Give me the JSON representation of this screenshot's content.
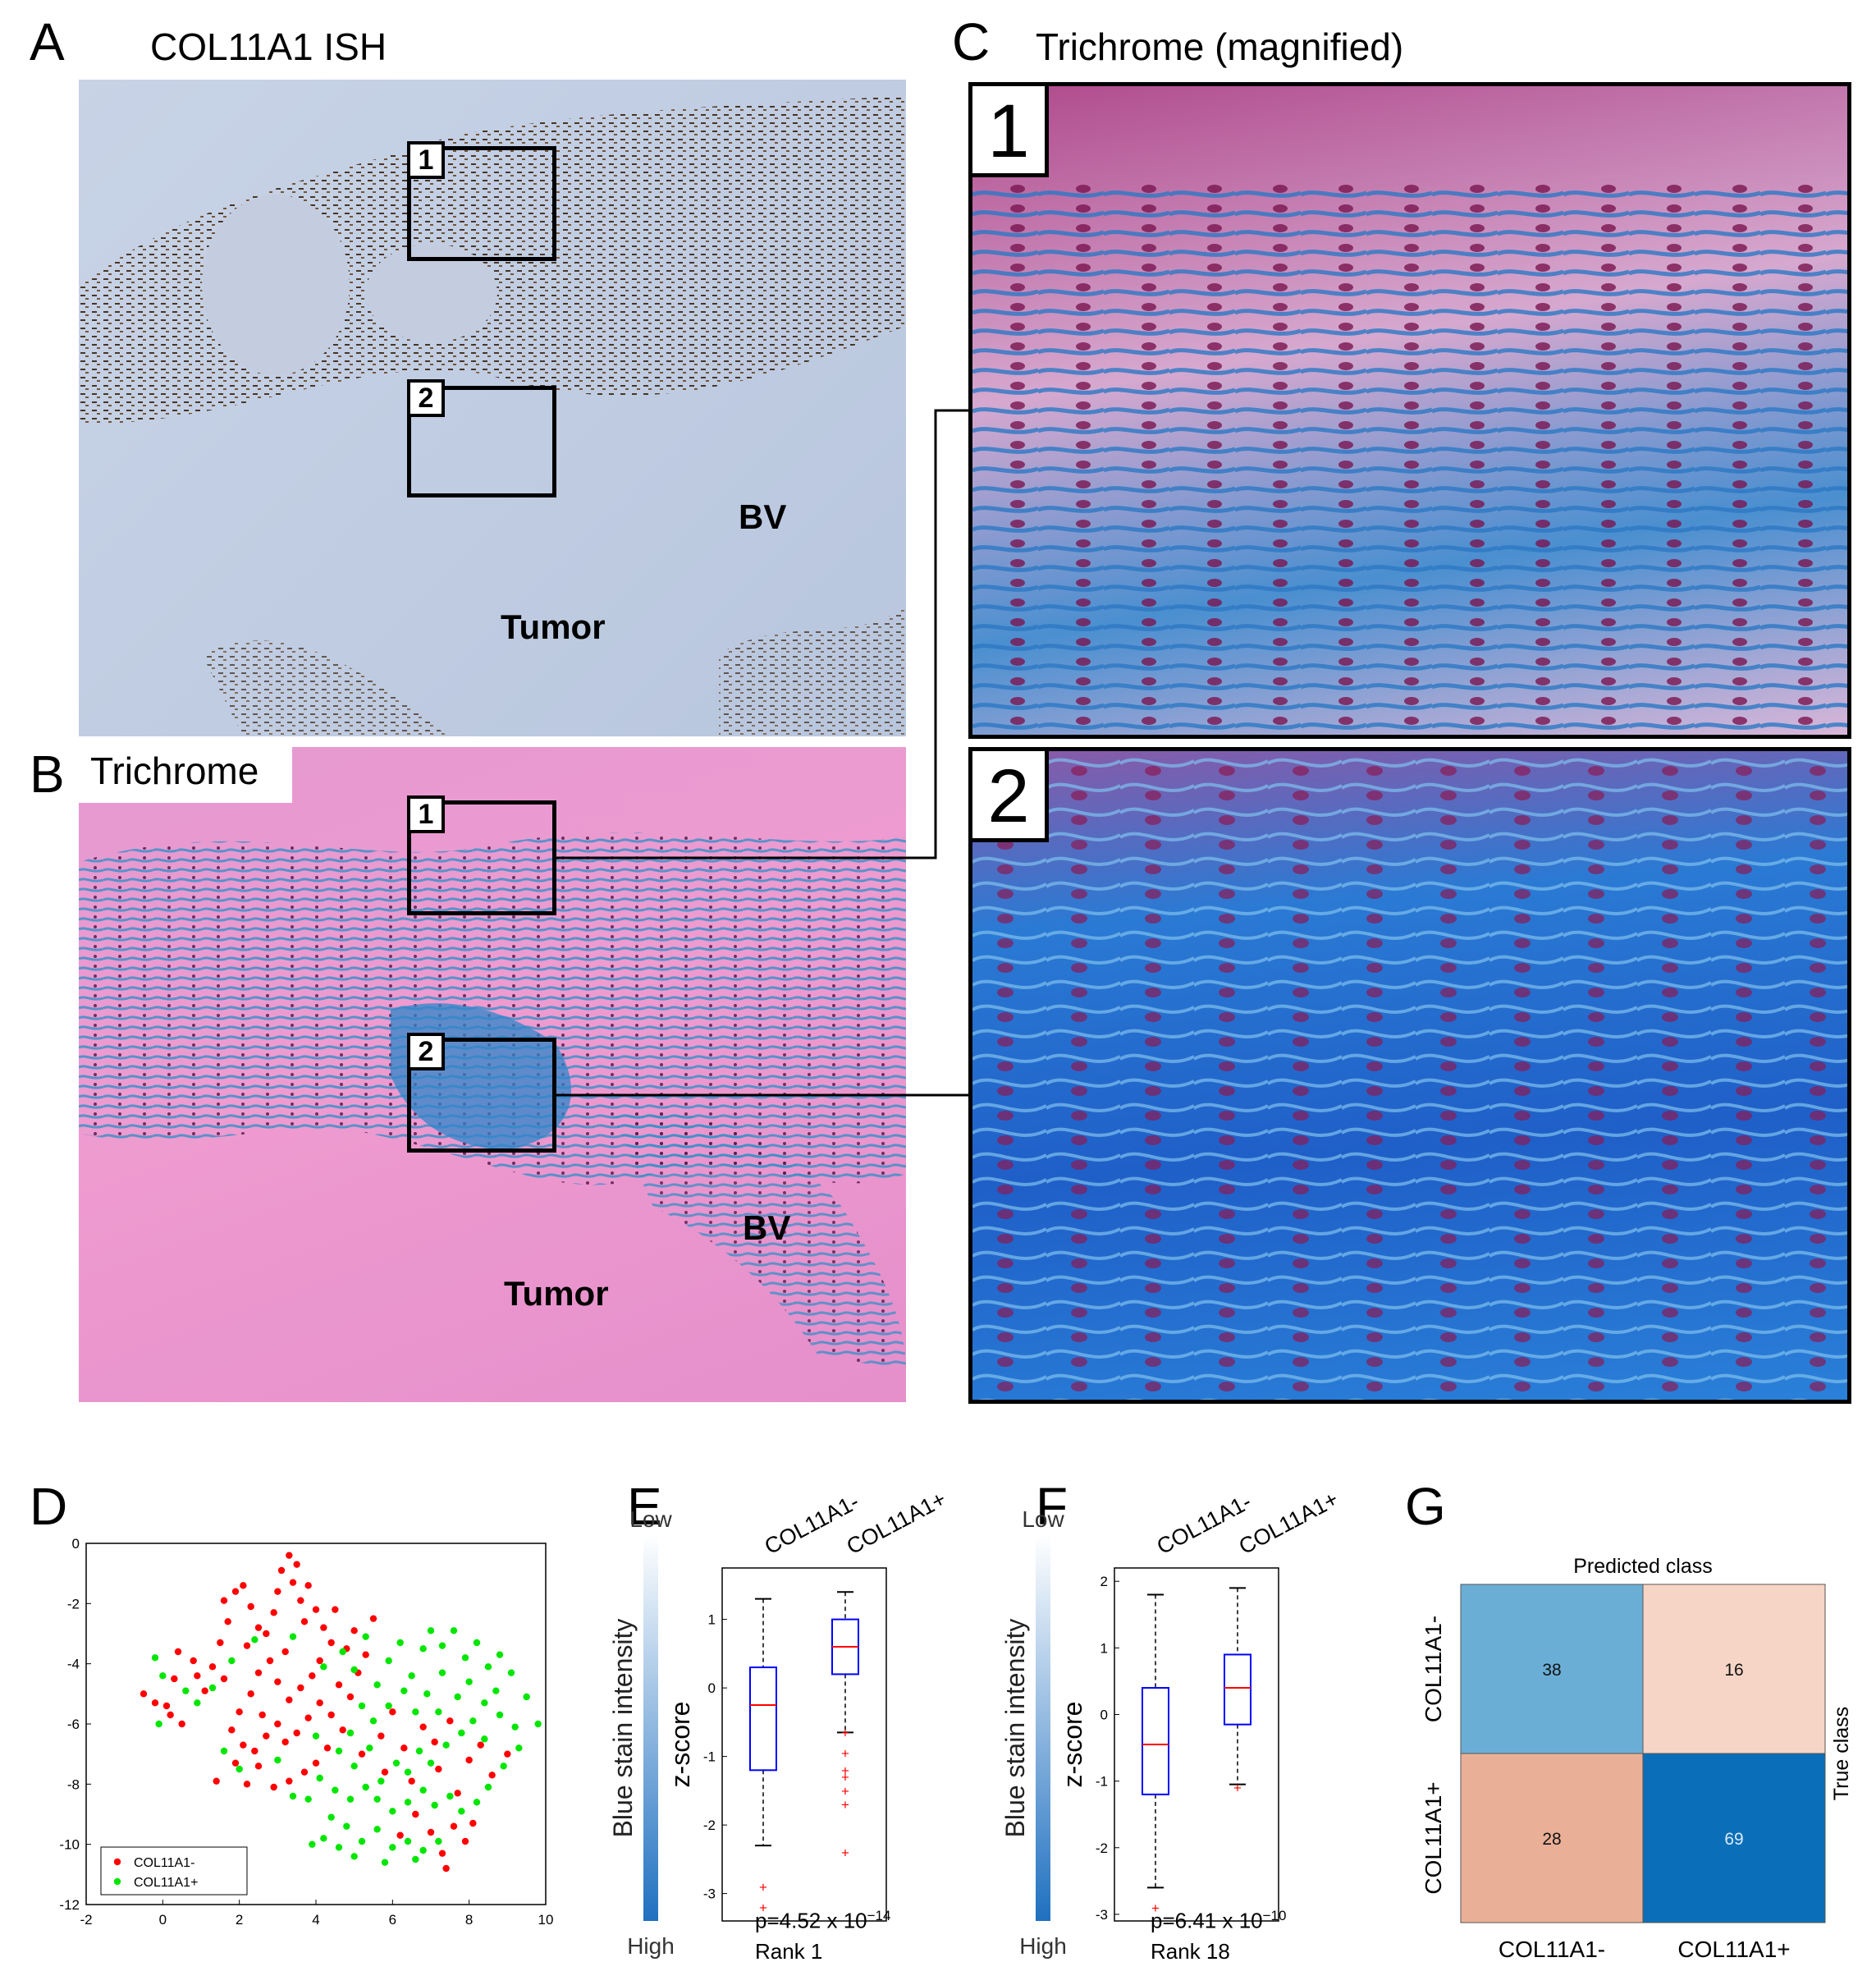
{
  "panels": {
    "A": {
      "letter": "A",
      "title": "COL11A1 ISH",
      "box1": "1",
      "box2": "2",
      "bv": "BV",
      "tumor": "Tumor"
    },
    "B": {
      "letter": "B",
      "title": "Trichrome",
      "box1": "1",
      "box2": "2",
      "bv": "BV",
      "tumor": "Tumor"
    },
    "C": {
      "letter": "C",
      "title": "Trichrome (magnified)",
      "inset1": "1",
      "inset2": "2"
    },
    "D": {
      "letter": "D"
    },
    "E": {
      "letter": "E",
      "p_prefix": "p=4.52 x 10",
      "p_exp": "−14",
      "rank": "Rank 1"
    },
    "F": {
      "letter": "F",
      "p_prefix": "p=6.41 x 10",
      "p_exp": "−10",
      "rank": "Rank 18"
    },
    "G": {
      "letter": "G"
    }
  },
  "colors": {
    "neg": "#ff0000",
    "pos": "#00e600",
    "box": "#0000ff",
    "median": "#ff0000",
    "cm_38": "#6aaed6",
    "cm_16": "#f6d5c6",
    "cm_28": "#eab097",
    "cm_69": "#0a6fb8"
  },
  "chart_data": [
    {
      "type": "scatter",
      "panel": "D",
      "xlim": [
        -2,
        10
      ],
      "ylim": [
        -12,
        0
      ],
      "xticks": [
        -2,
        0,
        2,
        4,
        6,
        8,
        10
      ],
      "yticks": [
        0,
        -2,
        -4,
        -6,
        -8,
        -10,
        -12
      ],
      "legend": [
        "COL11A1-",
        "COL11A1+"
      ],
      "legend_position": "bottom-left",
      "series": [
        {
          "name": "COL11A1-",
          "color": "#ff0000",
          "points": [
            [
              -0.5,
              -5.0
            ],
            [
              -0.2,
              -5.3
            ],
            [
              0.1,
              -5.4
            ],
            [
              0.3,
              -4.5
            ],
            [
              0.5,
              -6.0
            ],
            [
              0.2,
              -5.7
            ],
            [
              0.4,
              -3.6
            ],
            [
              0.8,
              -3.9
            ],
            [
              1.1,
              -4.9
            ],
            [
              1.3,
              -4.1
            ],
            [
              1.5,
              -3.3
            ],
            [
              1.7,
              -2.6
            ],
            [
              1.6,
              -1.9
            ],
            [
              1.9,
              -1.6
            ],
            [
              2.1,
              -1.4
            ],
            [
              2.3,
              -2.1
            ],
            [
              2.5,
              -2.8
            ],
            [
              2.2,
              -3.4
            ],
            [
              2.7,
              -3.0
            ],
            [
              2.9,
              -2.3
            ],
            [
              3.0,
              -1.6
            ],
            [
              3.1,
              -0.9
            ],
            [
              3.3,
              -0.4
            ],
            [
              3.5,
              -0.7
            ],
            [
              3.4,
              -1.3
            ],
            [
              3.6,
              -1.9
            ],
            [
              3.8,
              -1.4
            ],
            [
              3.7,
              -2.6
            ],
            [
              4.0,
              -2.2
            ],
            [
              4.2,
              -2.8
            ],
            [
              4.4,
              -3.3
            ],
            [
              4.1,
              -3.9
            ],
            [
              3.9,
              -4.4
            ],
            [
              3.6,
              -4.8
            ],
            [
              3.3,
              -5.2
            ],
            [
              3.0,
              -4.6
            ],
            [
              2.8,
              -3.9
            ],
            [
              2.5,
              -4.3
            ],
            [
              2.3,
              -5.0
            ],
            [
              2.0,
              -5.6
            ],
            [
              1.8,
              -6.2
            ],
            [
              2.1,
              -6.7
            ],
            [
              2.4,
              -6.9
            ],
            [
              2.7,
              -6.4
            ],
            [
              3.0,
              -6.0
            ],
            [
              3.2,
              -6.6
            ],
            [
              3.5,
              -6.3
            ],
            [
              3.8,
              -5.8
            ],
            [
              4.1,
              -5.3
            ],
            [
              4.4,
              -5.7
            ],
            [
              4.7,
              -6.2
            ],
            [
              4.3,
              -6.8
            ],
            [
              4.0,
              -7.3
            ],
            [
              3.7,
              -7.6
            ],
            [
              3.3,
              -7.9
            ],
            [
              2.9,
              -8.1
            ],
            [
              2.5,
              -7.4
            ],
            [
              2.2,
              -8.0
            ],
            [
              1.9,
              -7.3
            ],
            [
              4.6,
              -4.7
            ],
            [
              4.9,
              -5.1
            ],
            [
              5.1,
              -4.3
            ],
            [
              5.3,
              -3.7
            ],
            [
              5.0,
              -2.9
            ],
            [
              5.5,
              -2.5
            ],
            [
              4.8,
              -3.5
            ],
            [
              5.7,
              -6.4
            ],
            [
              6.0,
              -5.6
            ],
            [
              6.3,
              -6.8
            ],
            [
              5.8,
              -7.6
            ],
            [
              6.5,
              -7.9
            ],
            [
              6.8,
              -6.1
            ],
            [
              7.1,
              -6.6
            ],
            [
              7.5,
              -5.9
            ],
            [
              7.2,
              -7.5
            ],
            [
              7.7,
              -8.3
            ],
            [
              8.0,
              -7.2
            ],
            [
              8.3,
              -6.7
            ],
            [
              8.6,
              -7.7
            ],
            [
              9.0,
              -7.0
            ],
            [
              7.6,
              -9.4
            ],
            [
              7.9,
              -9.9
            ],
            [
              7.3,
              -10.3
            ],
            [
              7.0,
              -9.6
            ],
            [
              6.6,
              -9.0
            ],
            [
              7.4,
              -10.8
            ],
            [
              8.1,
              -9.3
            ],
            [
              1.4,
              -7.9
            ],
            [
              2.6,
              -5.7
            ],
            [
              0.9,
              -4.4
            ],
            [
              1.6,
              -4.5
            ],
            [
              4.5,
              -2.2
            ],
            [
              3.2,
              -3.6
            ],
            [
              5.2,
              -7.0
            ],
            [
              6.2,
              -9.7
            ]
          ]
        },
        {
          "name": "COL11A1+",
          "color": "#00e600",
          "points": [
            [
              -0.2,
              -3.8
            ],
            [
              0.0,
              -4.4
            ],
            [
              -0.1,
              -6.0
            ],
            [
              0.6,
              -4.9
            ],
            [
              0.9,
              -5.3
            ],
            [
              1.3,
              -4.8
            ],
            [
              1.8,
              -3.9
            ],
            [
              2.4,
              -3.2
            ],
            [
              3.4,
              -3.1
            ],
            [
              4.2,
              -4.1
            ],
            [
              4.7,
              -3.6
            ],
            [
              5.0,
              -4.2
            ],
            [
              5.3,
              -3.1
            ],
            [
              5.6,
              -4.7
            ],
            [
              5.9,
              -3.9
            ],
            [
              6.2,
              -3.3
            ],
            [
              6.5,
              -4.4
            ],
            [
              6.8,
              -3.5
            ],
            [
              7.0,
              -2.9
            ],
            [
              7.3,
              -3.4
            ],
            [
              7.6,
              -2.9
            ],
            [
              7.9,
              -3.8
            ],
            [
              8.2,
              -3.3
            ],
            [
              8.5,
              -4.1
            ],
            [
              8.8,
              -3.7
            ],
            [
              9.1,
              -4.3
            ],
            [
              8.7,
              -4.9
            ],
            [
              8.4,
              -5.3
            ],
            [
              8.0,
              -4.6
            ],
            [
              7.7,
              -5.1
            ],
            [
              7.3,
              -4.3
            ],
            [
              6.9,
              -5.0
            ],
            [
              6.6,
              -5.6
            ],
            [
              6.3,
              -4.9
            ],
            [
              5.9,
              -5.4
            ],
            [
              5.5,
              -5.9
            ],
            [
              5.2,
              -5.4
            ],
            [
              4.9,
              -6.3
            ],
            [
              4.6,
              -6.9
            ],
            [
              5.0,
              -7.4
            ],
            [
              5.4,
              -6.8
            ],
            [
              5.7,
              -7.9
            ],
            [
              6.1,
              -7.3
            ],
            [
              6.4,
              -7.6
            ],
            [
              6.7,
              -6.9
            ],
            [
              7.0,
              -7.3
            ],
            [
              7.4,
              -6.7
            ],
            [
              7.8,
              -6.3
            ],
            [
              8.1,
              -5.9
            ],
            [
              8.4,
              -6.5
            ],
            [
              8.8,
              -5.7
            ],
            [
              9.2,
              -6.1
            ],
            [
              9.5,
              -5.1
            ],
            [
              9.3,
              -6.8
            ],
            [
              8.9,
              -7.4
            ],
            [
              8.5,
              -8.1
            ],
            [
              8.2,
              -8.6
            ],
            [
              7.8,
              -8.9
            ],
            [
              7.5,
              -8.4
            ],
            [
              7.1,
              -8.7
            ],
            [
              6.8,
              -8.2
            ],
            [
              6.4,
              -8.6
            ],
            [
              6.0,
              -8.9
            ],
            [
              5.6,
              -8.5
            ],
            [
              5.3,
              -8.1
            ],
            [
              4.9,
              -8.5
            ],
            [
              4.5,
              -8.2
            ],
            [
              4.1,
              -7.8
            ],
            [
              3.8,
              -8.5
            ],
            [
              4.4,
              -9.1
            ],
            [
              4.8,
              -9.4
            ],
            [
              5.2,
              -9.9
            ],
            [
              5.6,
              -9.5
            ],
            [
              6.0,
              -10.1
            ],
            [
              6.4,
              -9.9
            ],
            [
              6.8,
              -10.2
            ],
            [
              7.2,
              -9.9
            ],
            [
              4.6,
              -10.1
            ],
            [
              4.2,
              -9.8
            ],
            [
              3.9,
              -10.0
            ],
            [
              5.0,
              -10.4
            ],
            [
              5.8,
              -10.6
            ],
            [
              6.6,
              -10.5
            ],
            [
              1.6,
              -6.9
            ],
            [
              2.0,
              -7.5
            ],
            [
              3.0,
              -7.2
            ],
            [
              3.4,
              -8.4
            ],
            [
              4.0,
              -6.4
            ],
            [
              7.2,
              -5.6
            ],
            [
              9.8,
              -6.0
            ]
          ]
        }
      ]
    },
    {
      "type": "box",
      "panel": "E",
      "categories": [
        "COL11A1-",
        "COL11A1+"
      ],
      "ylabel": "z-score",
      "ylim": [
        -3.4,
        1.75
      ],
      "yticks": [
        1,
        0,
        -1,
        -2,
        -3
      ],
      "colorbar": {
        "label": "Blue stain intensity",
        "low": "Low",
        "high": "High"
      },
      "boxes": [
        {
          "whisker_high": 1.3,
          "q3": 0.3,
          "median": -0.25,
          "q1": -1.2,
          "whisker_low": -2.3,
          "outliers": [
            -2.9,
            -3.2
          ]
        },
        {
          "whisker_high": 1.4,
          "q3": 1.0,
          "median": 0.6,
          "q1": 0.2,
          "whisker_low": -0.65,
          "outliers": [
            -0.65,
            -0.95,
            -1.2,
            -1.3,
            -1.5,
            -1.7,
            -2.4
          ]
        }
      ]
    },
    {
      "type": "box",
      "panel": "F",
      "categories": [
        "COL11A1-",
        "COL11A1+"
      ],
      "ylabel": "z-score",
      "ylim": [
        -3.1,
        2.2
      ],
      "yticks": [
        2,
        1,
        0,
        -1,
        -2,
        -3
      ],
      "colorbar": {
        "label": "Blue stain intensity",
        "low": "Low",
        "high": "High"
      },
      "boxes": [
        {
          "whisker_high": 1.8,
          "q3": 0.4,
          "median": -0.45,
          "q1": -1.2,
          "whisker_low": -2.6,
          "outliers": [
            -2.9
          ]
        },
        {
          "whisker_high": 1.9,
          "q3": 0.9,
          "median": 0.4,
          "q1": -0.15,
          "whisker_low": -1.05,
          "outliers": [
            -1.1
          ]
        }
      ]
    },
    {
      "type": "heatmap",
      "panel": "G",
      "title": "Predicted class",
      "ylabel": "True class",
      "x_categories": [
        "COL11A1-",
        "COL11A1+"
      ],
      "y_categories": [
        "COL11A1-",
        "COL11A1+"
      ],
      "values": [
        [
          38,
          16
        ],
        [
          28,
          69
        ]
      ]
    }
  ]
}
